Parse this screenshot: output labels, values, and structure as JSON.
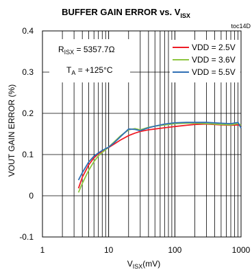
{
  "chart_data": {
    "type": "line",
    "title": "BUFFER GAIN ERROR vs. V",
    "title_sub": "ISX",
    "figure_id": "toc14D",
    "xlabel": "V",
    "xlabel_sub": "ISX",
    "xlabel_unit": "(mV)",
    "ylabel": "VOUT GAIN ERROR  (%)",
    "xscale": "log",
    "xlim": [
      1,
      1000
    ],
    "ylim": [
      -0.1,
      0.4
    ],
    "xticks": [
      "1",
      "10",
      "100",
      "1000"
    ],
    "yticks": [
      "-0.1",
      "0",
      "0.1",
      "0.2",
      "0.3",
      "0.4"
    ],
    "grid": true,
    "annotations": {
      "r_main": "R",
      "r_sub": "ISX",
      "r_value": " = 5357.7Ω",
      "t_main": "T",
      "t_sub": "A",
      "t_value": " = +125°C"
    },
    "legend_position": "top-right",
    "series": [
      {
        "name": "VDD = 2.5V",
        "color": "#ee1c25",
        "x": [
          3.5,
          4,
          5,
          6,
          7,
          8,
          10,
          12,
          15,
          20,
          25,
          30,
          40,
          50,
          70,
          100,
          150,
          200,
          300,
          500,
          700,
          900,
          1000
        ],
        "y": [
          0.018,
          0.045,
          0.075,
          0.092,
          0.102,
          0.108,
          0.117,
          0.125,
          0.135,
          0.146,
          0.152,
          0.156,
          0.16,
          0.162,
          0.165,
          0.168,
          0.171,
          0.173,
          0.174,
          0.172,
          0.171,
          0.172,
          0.169
        ]
      },
      {
        "name": "VDD = 3.6V",
        "color": "#8dc63f",
        "x": [
          3.5,
          4,
          5,
          6,
          7,
          8,
          10,
          12,
          15,
          20,
          25,
          30,
          40,
          50,
          70,
          100,
          150,
          200,
          300,
          500,
          700,
          900,
          1000
        ],
        "y": [
          0.008,
          0.03,
          0.062,
          0.083,
          0.097,
          0.105,
          0.118,
          0.13,
          0.145,
          0.16,
          0.163,
          0.16,
          0.166,
          0.169,
          0.172,
          0.175,
          0.176,
          0.176,
          0.175,
          0.173,
          0.172,
          0.175,
          0.171
        ]
      },
      {
        "name": "VDD = 5.5V",
        "color": "#2e6fb4",
        "x": [
          3.5,
          4,
          5,
          6,
          7,
          8,
          10,
          12,
          15,
          20,
          25,
          30,
          40,
          50,
          70,
          100,
          150,
          200,
          300,
          500,
          700,
          900,
          1000
        ],
        "y": [
          0.038,
          0.056,
          0.082,
          0.096,
          0.104,
          0.11,
          0.118,
          0.128,
          0.143,
          0.162,
          0.161,
          0.158,
          0.165,
          0.169,
          0.174,
          0.177,
          0.178,
          0.178,
          0.178,
          0.176,
          0.175,
          0.178,
          0.164
        ]
      }
    ]
  }
}
